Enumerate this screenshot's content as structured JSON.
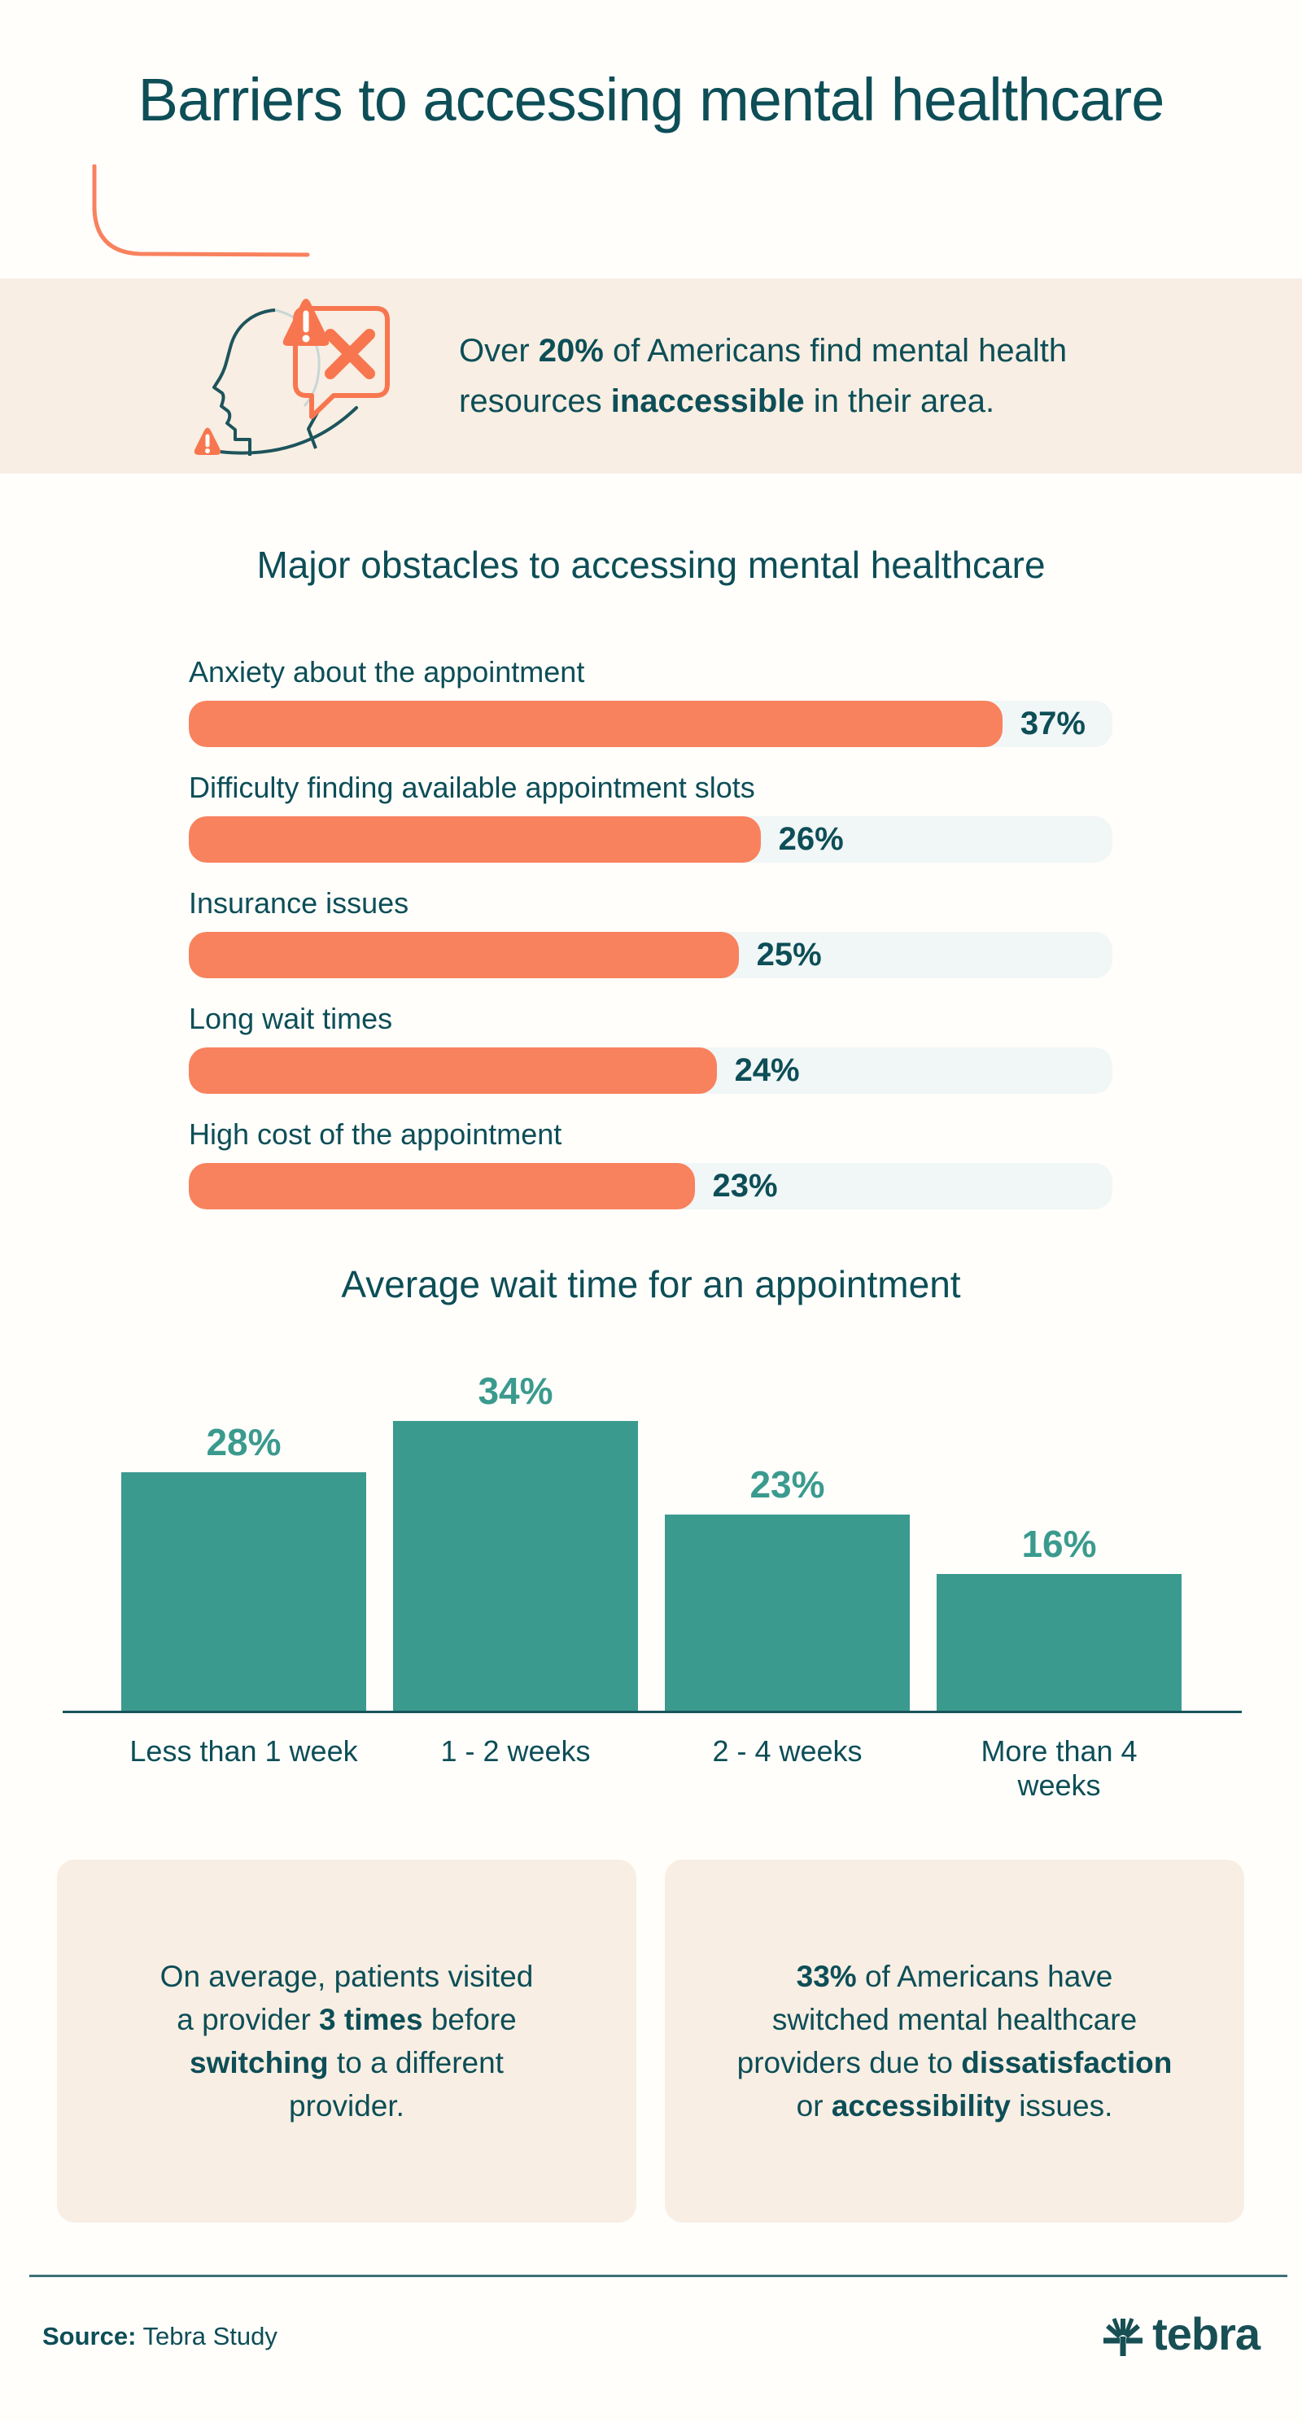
{
  "page": {
    "title": "Barriers to accessing mental healthcare",
    "background": "#fffefb"
  },
  "colors": {
    "dark_teal": "#0d4e57",
    "teal": "#3b9a8e",
    "accent_orange": "#f8825e",
    "alert_orange": "#f8764f",
    "beige": "#f8eee3",
    "track": "#f1f6f6",
    "axis": "#17545c",
    "divider": "#3e7078"
  },
  "banner": {
    "icon": "head-profile-with-error-speech-bubble-and-warning-triangles",
    "text_segments": [
      {
        "text": "Over ",
        "bold": false
      },
      {
        "text": "20%",
        "bold": true
      },
      {
        "text": " of Americans find mental health resources ",
        "bold": false
      },
      {
        "text": "inaccessible",
        "bold": true
      },
      {
        "text": " in their area.",
        "bold": false
      }
    ]
  },
  "chart_data": [
    {
      "type": "bar",
      "orientation": "horizontal",
      "title": "Major obstacles to accessing mental healthcare",
      "categories": [
        "Anxiety about the appointment",
        "Difficulty finding available appointment slots",
        "Insurance issues",
        "Long wait times",
        "High cost of the appointment"
      ],
      "values": [
        37,
        26,
        25,
        24,
        23
      ],
      "unit": "%",
      "xlim": [
        0,
        42
      ],
      "grid": false,
      "bar_color": "#f8825e",
      "track_color": "#f1f6f6",
      "value_label_color": "#0d4e57"
    },
    {
      "type": "bar",
      "orientation": "vertical",
      "title": "Average wait time for an appointment",
      "categories": [
        "Less than 1 week",
        "1 - 2 weeks",
        "2 - 4 weeks",
        "More than 4 weeks"
      ],
      "values": [
        28,
        34,
        23,
        16
      ],
      "unit": "%",
      "ylim": [
        0,
        36
      ],
      "grid": false,
      "bar_color": "#3b9a8e",
      "value_label_color": "#3b9a8e",
      "axis_color": "#17545c"
    }
  ],
  "cards": [
    {
      "segments": [
        {
          "text": "On average, patients visited a provider ",
          "bold": false
        },
        {
          "text": "3 times",
          "bold": true
        },
        {
          "text": " before ",
          "bold": false
        },
        {
          "text": "switching",
          "bold": true
        },
        {
          "text": " to a different provider.",
          "bold": false
        }
      ]
    },
    {
      "segments": [
        {
          "text": "33%",
          "bold": true
        },
        {
          "text": " of Americans have switched mental healthcare providers due to ",
          "bold": false
        },
        {
          "text": "dissatisfaction",
          "bold": true
        },
        {
          "text": " or ",
          "bold": false
        },
        {
          "text": "accessibility",
          "bold": true
        },
        {
          "text": " issues.",
          "bold": false
        }
      ]
    }
  ],
  "footer": {
    "source_label": "Source:",
    "source_value": " Tebra Study",
    "logo_text": "tebra",
    "logo_icon": "tebra-palm-leaf"
  }
}
